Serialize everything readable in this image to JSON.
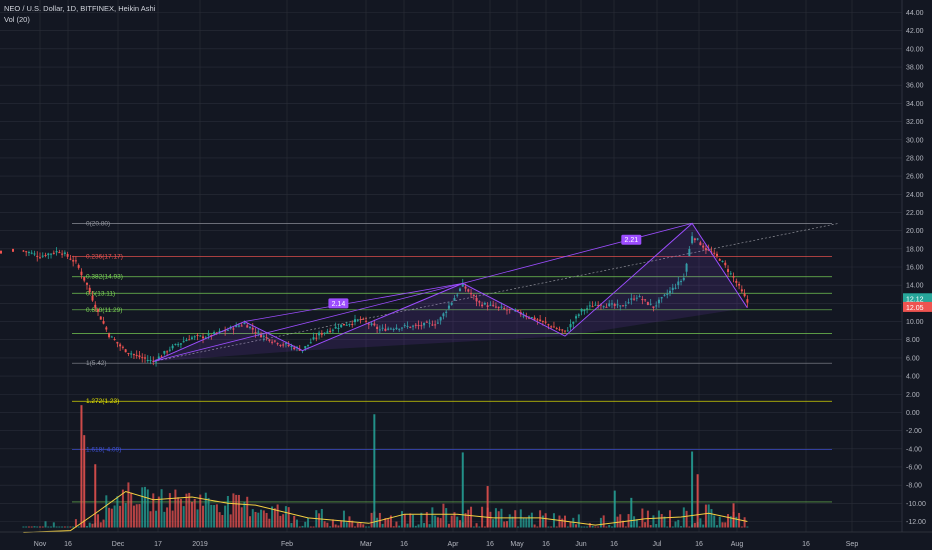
{
  "header": {
    "symbol_line": "NEO / U.S. Dollar, 1D, BITFINEX, Heikin Ashi",
    "volume_line": "Vol (20)"
  },
  "colors": {
    "background": "#131722",
    "grid": "#2a2e39",
    "up": "#26a69a",
    "down": "#ef5350",
    "pattern": "#9c4dff",
    "vol_ma": "#f5d142",
    "fib_yellow": "#e6e600",
    "fib_green": "#7ed957",
    "fib_red": "#ef5350",
    "fib_gray": "#9598a1",
    "fib_blue": "#3f51d8"
  },
  "chart_data": {
    "type": "candlestick",
    "title": "NEO / U.S. Dollar, 1D, BITFINEX, Heikin Ashi",
    "x_ticks": [
      "Nov",
      "16",
      "Dec",
      "17",
      "2019",
      "Feb",
      "Mar",
      "16",
      "Apr",
      "16",
      "May",
      "16",
      "Jun",
      "16",
      "Jul",
      "16",
      "Aug",
      "16",
      "Sep"
    ],
    "y_ticks": [
      "44.00",
      "42.00",
      "40.00",
      "38.00",
      "36.00",
      "34.00",
      "32.00",
      "30.00",
      "28.00",
      "26.00",
      "24.00",
      "22.00",
      "20.00",
      "18.00",
      "16.00",
      "14.00",
      "12.00",
      "10.00",
      "8.00",
      "6.00",
      "4.00",
      "2.00",
      "0.00",
      "-2.00",
      "-4.00",
      "-6.00",
      "-8.00",
      "-10.00",
      "-12.00"
    ],
    "ylim": [
      -13.2,
      45.2
    ],
    "price_badges": [
      {
        "label": "12.12",
        "value": 12.12,
        "color": "#26a69a"
      },
      {
        "label": "12.05",
        "value": 12.05,
        "color": "#ef5350"
      }
    ],
    "fib_levels": [
      {
        "label": "0(20.80)",
        "value": 20.8,
        "color": "#9598a1"
      },
      {
        "label": "0.236(17.17)",
        "value": 17.17,
        "color": "#ef5350"
      },
      {
        "label": "0.382(14.93)",
        "value": 14.93,
        "color": "#7ed957"
      },
      {
        "label": "0.5(13.11)",
        "value": 13.11,
        "color": "#7ed957"
      },
      {
        "label": "0.618(11.29)",
        "value": 11.29,
        "color": "#7ed957"
      },
      {
        "label": "",
        "value": 8.7,
        "color": "#7ed957"
      },
      {
        "label": "1(5.42)",
        "value": 5.42,
        "color": "#9598a1"
      },
      {
        "label": "1.272(1.23)",
        "value": 1.23,
        "color": "#e6e600"
      },
      {
        "label": "1.618(-4.09)",
        "value": -4.09,
        "color": "#3f51d8"
      },
      {
        "label": "",
        "value": -9.85,
        "color": "#7ed957"
      }
    ],
    "pattern_points": [
      {
        "date": "2018-12-12",
        "price": 5.6
      },
      {
        "date": "2019-01-14",
        "price": 10.0
      },
      {
        "date": "2019-02-04",
        "price": 6.8
      },
      {
        "date": "2019-04-03",
        "price": 14.2
      },
      {
        "date": "2019-05-10",
        "price": 8.4
      },
      {
        "date": "2019-06-25",
        "price": 20.8
      },
      {
        "date": "2019-07-15",
        "price": 11.5
      }
    ],
    "pattern_labels": [
      {
        "label": "2.14",
        "date": "2019-02-17",
        "price": 12.0
      },
      {
        "label": "2.21",
        "date": "2019-06-03",
        "price": 19.0
      }
    ],
    "trend_line": [
      {
        "date": "2018-12-12",
        "price": 5.6
      },
      {
        "date": "2019-08-17",
        "price": 20.8
      }
    ],
    "price_series": {
      "dates": [
        "2018-10-26",
        "2018-11-01",
        "2018-11-08",
        "2018-11-14",
        "2018-11-18",
        "2018-11-22",
        "2018-11-26",
        "2018-12-01",
        "2018-12-06",
        "2018-12-12",
        "2018-12-18",
        "2018-12-25",
        "2019-01-01",
        "2019-01-07",
        "2019-01-14",
        "2019-01-20",
        "2019-01-27",
        "2019-02-04",
        "2019-02-10",
        "2019-02-18",
        "2019-02-25",
        "2019-03-04",
        "2019-03-10",
        "2019-03-18",
        "2019-03-25",
        "2019-04-03",
        "2019-04-09",
        "2019-04-16",
        "2019-04-23",
        "2019-04-30",
        "2019-05-10",
        "2019-05-16",
        "2019-05-22",
        "2019-05-30",
        "2019-06-05",
        "2019-06-11",
        "2019-06-18",
        "2019-06-22",
        "2019-06-25",
        "2019-06-30",
        "2019-07-05",
        "2019-07-10",
        "2019-07-15"
      ],
      "values": [
        17.8,
        17.2,
        17.8,
        16.5,
        14.0,
        11.0,
        8.5,
        7.0,
        6.2,
        5.6,
        7.0,
        8.2,
        8.4,
        9.0,
        9.8,
        8.5,
        7.6,
        6.9,
        8.6,
        9.6,
        10.2,
        9.1,
        9.4,
        9.5,
        9.9,
        14.0,
        12.0,
        11.5,
        11.0,
        10.2,
        8.8,
        11.2,
        12.0,
        11.6,
        12.8,
        11.6,
        13.6,
        14.8,
        19.5,
        18.0,
        16.9,
        14.8,
        12.1
      ]
    },
    "volume": {
      "ma_dates": [
        "2018-10-26",
        "2018-11-12",
        "2018-11-22",
        "2018-12-02",
        "2018-12-12",
        "2018-12-26",
        "2019-01-08",
        "2019-01-18",
        "2019-02-06",
        "2019-02-28",
        "2019-03-13",
        "2019-04-01",
        "2019-04-14",
        "2019-05-01",
        "2019-05-21",
        "2019-06-08",
        "2019-06-21",
        "2019-07-01",
        "2019-07-15"
      ],
      "ma_values": [
        -13.2,
        -13.0,
        -10.9,
        -8.7,
        -9.6,
        -9.3,
        -10.0,
        -10.2,
        -11.6,
        -12.2,
        -11.2,
        -11.2,
        -11.6,
        -11.6,
        -12.4,
        -11.7,
        -11.5,
        -11.1,
        -12.0
      ],
      "spikes": [
        {
          "date": "2018-11-16",
          "value": 0.8,
          "color": "#ef5350"
        },
        {
          "date": "2018-11-17",
          "value": -2.5,
          "color": "#ef5350"
        },
        {
          "date": "2018-11-21",
          "value": -5.7,
          "color": "#ef5350"
        },
        {
          "date": "2019-03-02",
          "value": -0.2,
          "color": "#26a69a"
        },
        {
          "date": "2019-04-03",
          "value": -4.4,
          "color": "#26a69a"
        },
        {
          "date": "2019-04-12",
          "value": -8.1,
          "color": "#ef5350"
        },
        {
          "date": "2019-05-28",
          "value": -8.6,
          "color": "#26a69a"
        },
        {
          "date": "2019-06-03",
          "value": -9.4,
          "color": "#26a69a"
        },
        {
          "date": "2019-06-25",
          "value": -4.3,
          "color": "#26a69a"
        },
        {
          "date": "2019-06-27",
          "value": -6.8,
          "color": "#ef5350"
        },
        {
          "date": "2019-07-10",
          "value": -10.0,
          "color": "#ef5350"
        }
      ]
    }
  }
}
